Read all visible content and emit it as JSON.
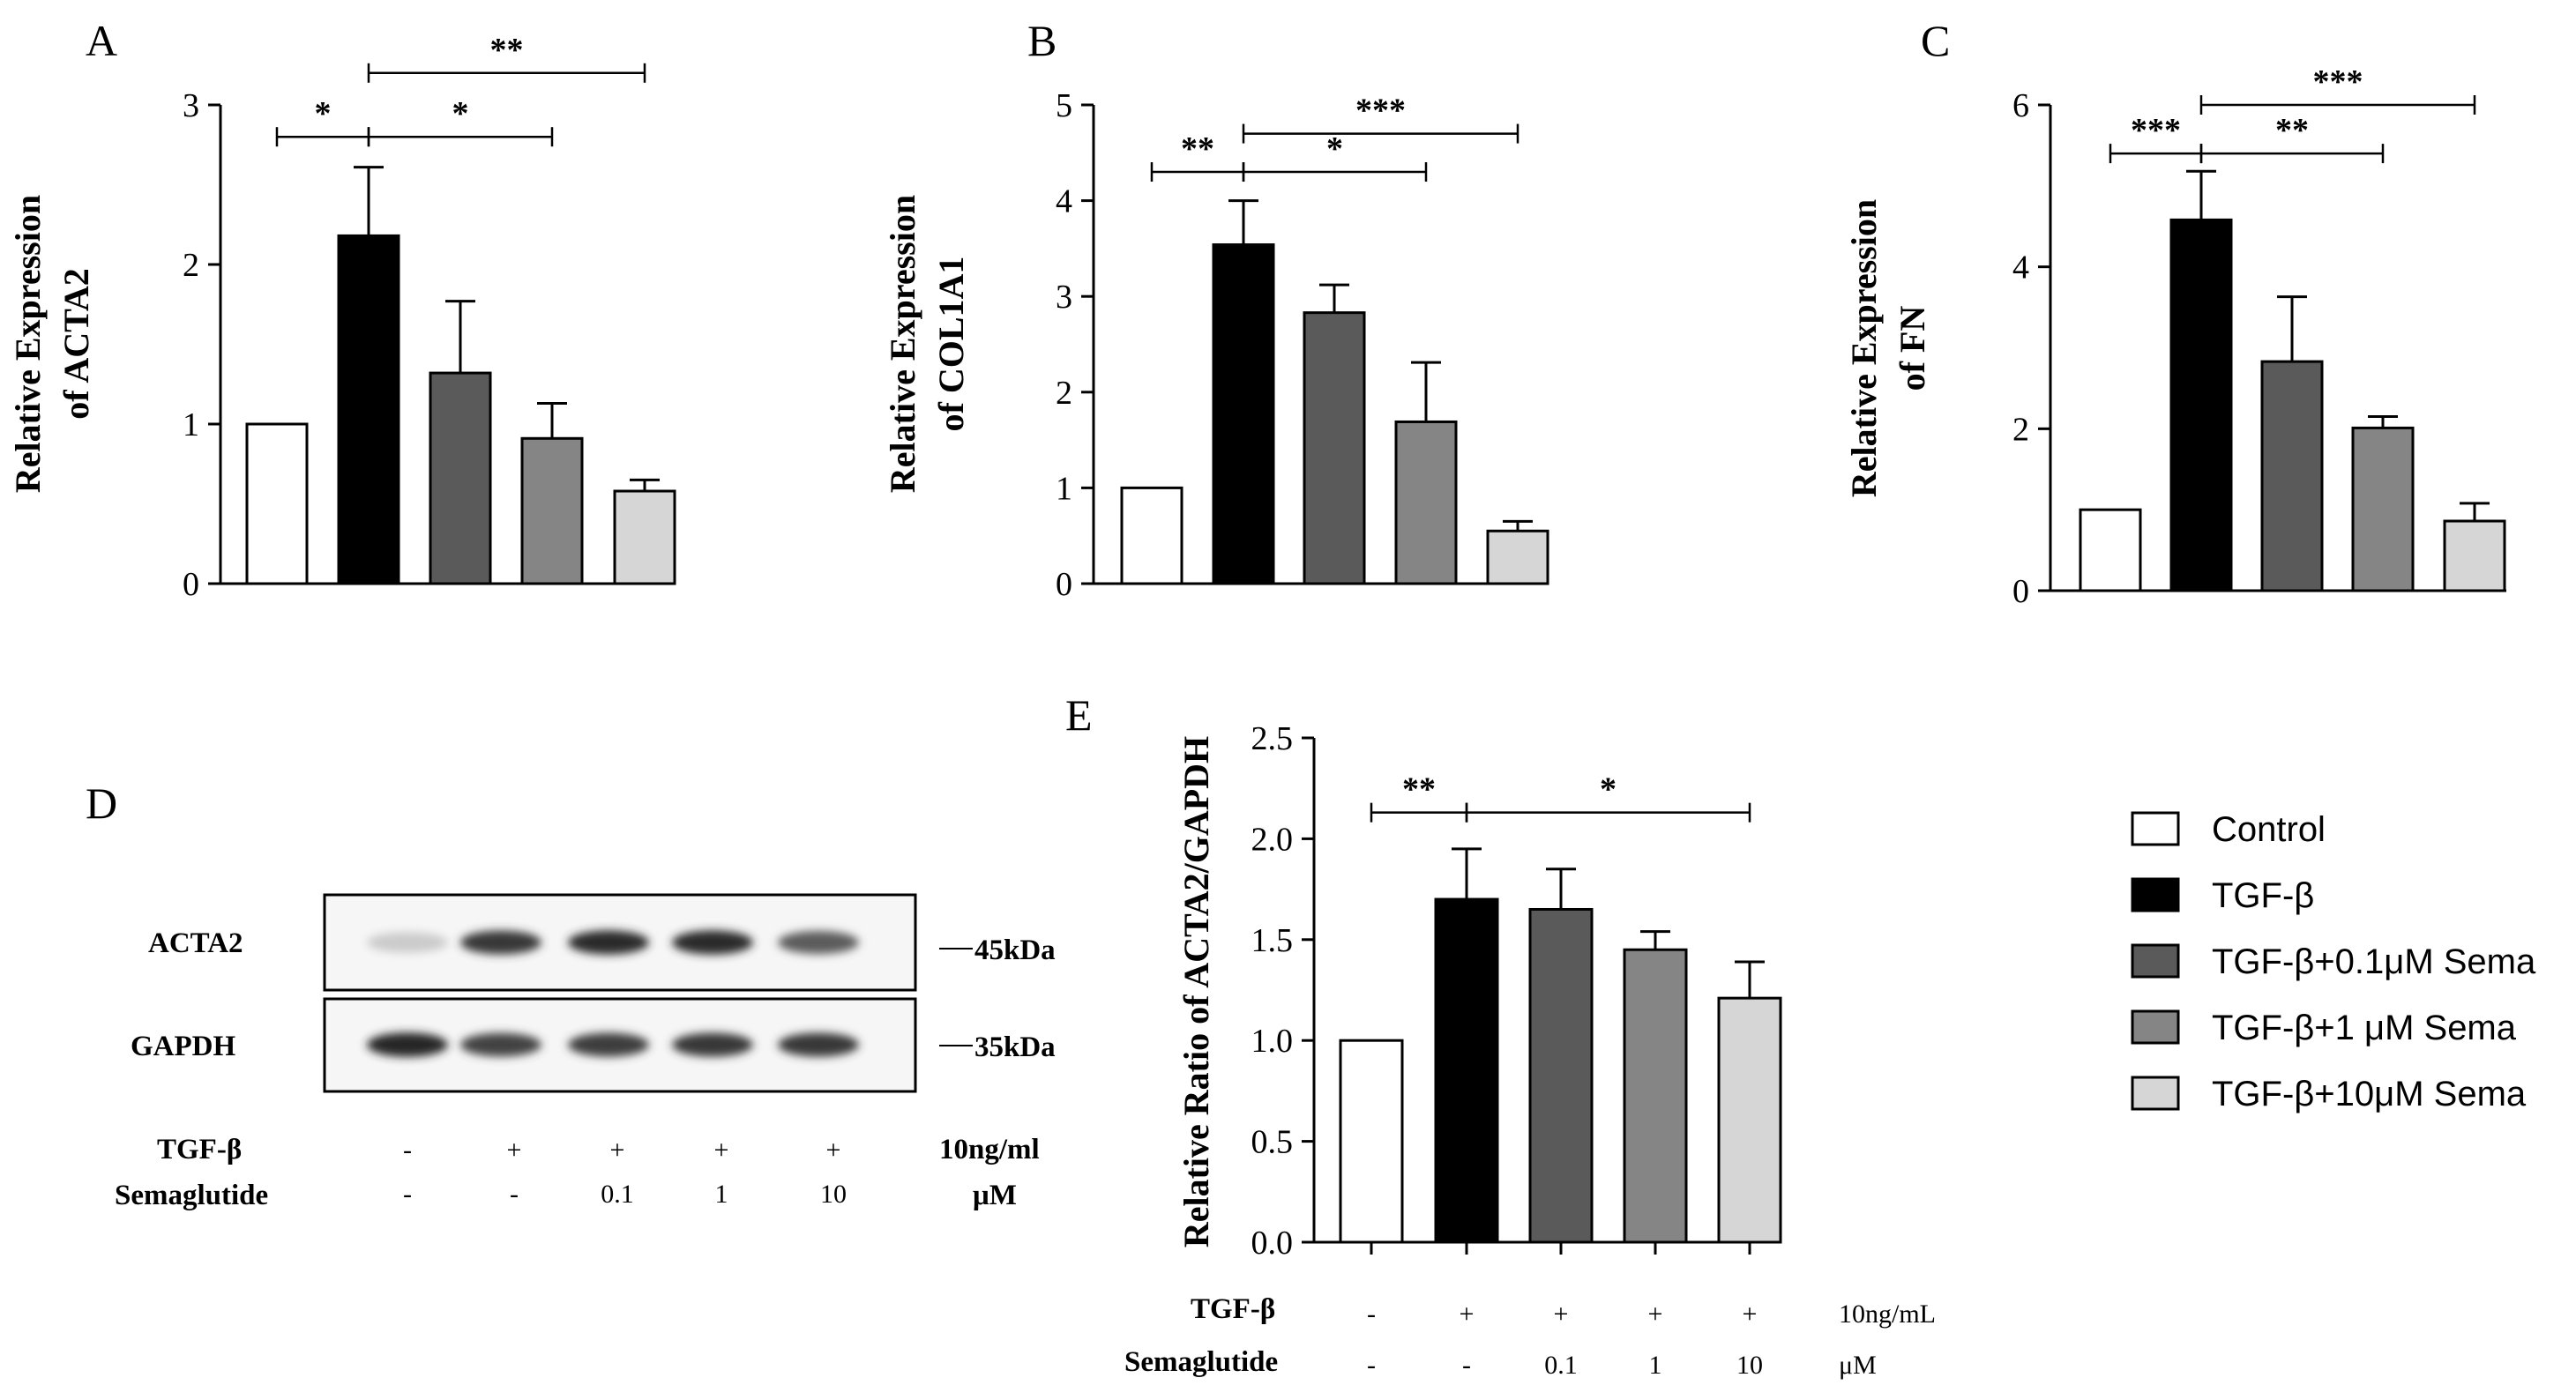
{
  "colors": [
    "#ffffff",
    "#000000",
    "#5a5a5a",
    "#858585",
    "#d6d6d6"
  ],
  "legend": [
    "Control",
    "TGF-β",
    "TGF-β+0.1μM Sema",
    "TGF-β+1 μM Sema",
    "TGF-β+10μM Sema"
  ],
  "chart_data": [
    {
      "id": "A",
      "type": "bar",
      "letter": "A",
      "ylabel_lines": [
        "Relative Expression",
        "of ACTA2"
      ],
      "categories": [
        "Control",
        "TGF-β",
        "TGF-β+0.1μM Sema",
        "TGF-β+1 μM Sema",
        "TGF-β+10μM Sema"
      ],
      "values": [
        1.0,
        2.18,
        1.32,
        0.91,
        0.58
      ],
      "errors": [
        0,
        0.43,
        0.45,
        0.22,
        0.07
      ],
      "ylim": [
        0,
        3
      ],
      "yticks": [
        "0",
        "1",
        "2",
        "3"
      ],
      "yticks_values": [
        0,
        1,
        2,
        3
      ],
      "significance": [
        {
          "from": 0,
          "to": 1,
          "label": "*",
          "y": 2.8
        },
        {
          "from": 1,
          "to": 3,
          "label": "*",
          "y": 2.8
        },
        {
          "from": 1,
          "to": 4,
          "label": "**",
          "y": 3.2
        }
      ]
    },
    {
      "id": "B",
      "type": "bar",
      "letter": "B",
      "ylabel_lines": [
        "Relative Expression",
        "of COL1A1"
      ],
      "categories": [
        "Control",
        "TGF-β",
        "TGF-β+0.1μM Sema",
        "TGF-β+1 μM Sema",
        "TGF-β+10μM Sema"
      ],
      "values": [
        1.0,
        3.54,
        2.83,
        1.69,
        0.55
      ],
      "errors": [
        0,
        0.46,
        0.29,
        0.62,
        0.1
      ],
      "ylim": [
        0,
        5
      ],
      "yticks": [
        "0",
        "1",
        "2",
        "3",
        "4",
        "5"
      ],
      "yticks_values": [
        0,
        1,
        2,
        3,
        4,
        5
      ],
      "significance": [
        {
          "from": 0,
          "to": 1,
          "label": "**",
          "y": 4.3
        },
        {
          "from": 1,
          "to": 3,
          "label": "*",
          "y": 4.3
        },
        {
          "from": 1,
          "to": 4,
          "label": "***",
          "y": 4.7
        }
      ]
    },
    {
      "id": "C",
      "type": "bar",
      "letter": "C",
      "ylabel_lines": [
        "Relative Expression",
        "of FN"
      ],
      "categories": [
        "Control",
        "TGF-β",
        "TGF-β+0.1μM Sema",
        "TGF-β+1 μM Sema",
        "TGF-β+10μM Sema"
      ],
      "values": [
        1.0,
        4.58,
        2.83,
        2.01,
        0.86
      ],
      "errors": [
        0,
        0.6,
        0.8,
        0.14,
        0.22
      ],
      "ylim": [
        0,
        6
      ],
      "yticks": [
        "0",
        "2",
        "4",
        "6"
      ],
      "yticks_values": [
        0,
        2,
        4,
        6
      ],
      "significance": [
        {
          "from": 0,
          "to": 1,
          "label": "***",
          "y": 5.4
        },
        {
          "from": 1,
          "to": 3,
          "label": "**",
          "y": 5.4
        },
        {
          "from": 1,
          "to": 4,
          "label": "***",
          "y": 6.0
        }
      ]
    },
    {
      "id": "E",
      "type": "bar",
      "letter": "E",
      "ylabel_lines": [
        "Relative Ratio of ACTA2/GAPDH"
      ],
      "categories": [
        "Control",
        "TGF-β",
        "TGF-β+0.1μM Sema",
        "TGF-β+1 μM Sema",
        "TGF-β+10μM Sema"
      ],
      "values": [
        1.0,
        1.7,
        1.65,
        1.45,
        1.21
      ],
      "errors": [
        0,
        0.25,
        0.2,
        0.09,
        0.18
      ],
      "ylim": [
        0,
        2.5
      ],
      "yticks": [
        "0.0",
        "0.5",
        "1.0",
        "1.5",
        "2.0",
        "2.5"
      ],
      "yticks_values": [
        0,
        0.5,
        1.0,
        1.5,
        2.0,
        2.5
      ],
      "significance": [
        {
          "from": 0,
          "to": 1,
          "label": "**",
          "y": 2.13
        },
        {
          "from": 1,
          "to": 4,
          "label": "*",
          "y": 2.13
        }
      ],
      "treatment_rows": [
        {
          "label": "TGF-β",
          "values": [
            "-",
            "+",
            "+",
            "+",
            "+"
          ],
          "unit": "10ng/mL"
        },
        {
          "label": "Semaglutide",
          "values": [
            "-",
            "-",
            "0.1",
            "1",
            "10"
          ],
          "unit": "μM"
        }
      ]
    }
  ],
  "blot": {
    "letter": "D",
    "rows": [
      {
        "label": "ACTA2",
        "marker": "45kDa",
        "intensities": [
          0.22,
          0.85,
          0.9,
          0.9,
          0.7
        ]
      },
      {
        "label": "GAPDH",
        "marker": "35kDa",
        "intensities": [
          0.92,
          0.8,
          0.82,
          0.85,
          0.85
        ]
      }
    ],
    "treatment_rows": [
      {
        "label": "TGF-β",
        "values": [
          "-",
          "+",
          "+",
          "+",
          "+"
        ],
        "unit": "10ng/ml"
      },
      {
        "label": "Semaglutide",
        "values": [
          "-",
          "-",
          "0.1",
          "1",
          "10"
        ],
        "unit": "μM"
      }
    ]
  }
}
